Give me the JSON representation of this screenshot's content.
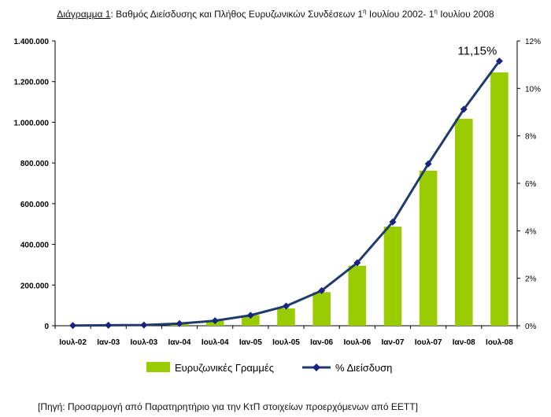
{
  "title": {
    "prefix": "Διάγραμμα 1",
    "part1": ": Βαθμός Διείσδυσης και Πλήθος Ευρυζωνικών Συνδέσεων 1",
    "sup1": "η",
    "part2": " Ιουλίου 2002- 1",
    "sup2": "η",
    "part3": " Ιουλίου 2008"
  },
  "source": "[Πηγή: Προσαρμογή από Παρατηρητήριο για την ΚτΠ στοιχείων προερχόμενων από ΕΕΤΤ]",
  "chart_data": {
    "type": "bar",
    "categories": [
      "Ιουλ-02",
      "Ιαν-03",
      "Ιουλ-03",
      "Ιαν-04",
      "Ιουλ-04",
      "Ιαν-05",
      "Ιουλ-05",
      "Ιαν-06",
      "Ιουλ-06",
      "Ιαν-07",
      "Ιουλ-07",
      "Ιαν-08",
      "Ιουλ-08"
    ],
    "series": [
      {
        "name": "Ευρυζωνικές Γραμμές",
        "type": "bar",
        "axis": "left",
        "color": "#99cc00",
        "values": [
          0,
          1500,
          3000,
          10000,
          24000,
          52000,
          85000,
          165000,
          295000,
          487000,
          762000,
          1017000,
          1245000
        ]
      },
      {
        "name": "% Διείσδυση",
        "type": "line",
        "axis": "right",
        "color": "#1f3b6e",
        "values": [
          0.01,
          0.02,
          0.03,
          0.09,
          0.21,
          0.44,
          0.83,
          1.48,
          2.65,
          4.37,
          6.82,
          9.12,
          11.15
        ]
      }
    ],
    "y_left": {
      "min": 0,
      "max": 1400000,
      "step": 200000,
      "tick_labels": [
        "0",
        "200.000",
        "400.000",
        "600.000",
        "800.000",
        "1.000.000",
        "1.200.000",
        "1.400.000"
      ]
    },
    "y_right": {
      "min": 0,
      "max": 12,
      "step": 2,
      "tick_labels": [
        "0%",
        "2%",
        "4%",
        "6%",
        "8%",
        "10%",
        "12%"
      ]
    },
    "annotation": {
      "text": "11,15%",
      "category": "Ιουλ-08"
    },
    "legend": {
      "position": "bottom"
    },
    "grid": false
  }
}
